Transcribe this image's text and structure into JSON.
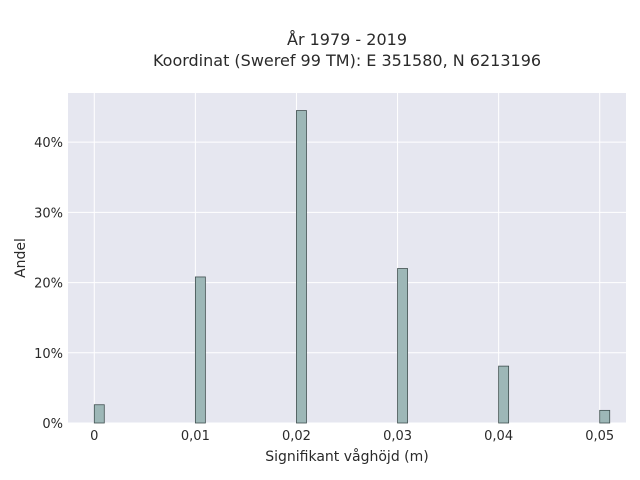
{
  "chart_data": {
    "type": "bar",
    "title": [
      "År 1979 - 2019",
      "Koordinat (Sweref 99 TM): E 351580, N 6213196"
    ],
    "xlabel": "Signifikant våghöjd (m)",
    "ylabel": "Andel",
    "x": [
      0,
      0.01,
      0.02,
      0.03,
      0.04,
      0.05
    ],
    "values": [
      2.6,
      20.8,
      44.5,
      22.0,
      8.1,
      1.8
    ],
    "xticks": [
      0,
      0.01,
      0.02,
      0.03,
      0.04,
      0.05
    ],
    "xtick_labels": [
      "0",
      "0,01",
      "0,02",
      "0,03",
      "0,04",
      "0,05"
    ],
    "yticks": [
      0,
      10,
      20,
      30,
      40
    ],
    "ytick_labels": [
      "0%",
      "10%",
      "20%",
      "30%",
      "40%"
    ],
    "xlim": [
      -0.0026,
      0.0526
    ],
    "ylim": [
      0,
      47
    ],
    "grid": true,
    "colors": {
      "bar_fill": "#9db7b7",
      "bar_edge": "#3f4f4f",
      "plot_background": "#e6e7f0",
      "grid": "#ffffff"
    }
  }
}
